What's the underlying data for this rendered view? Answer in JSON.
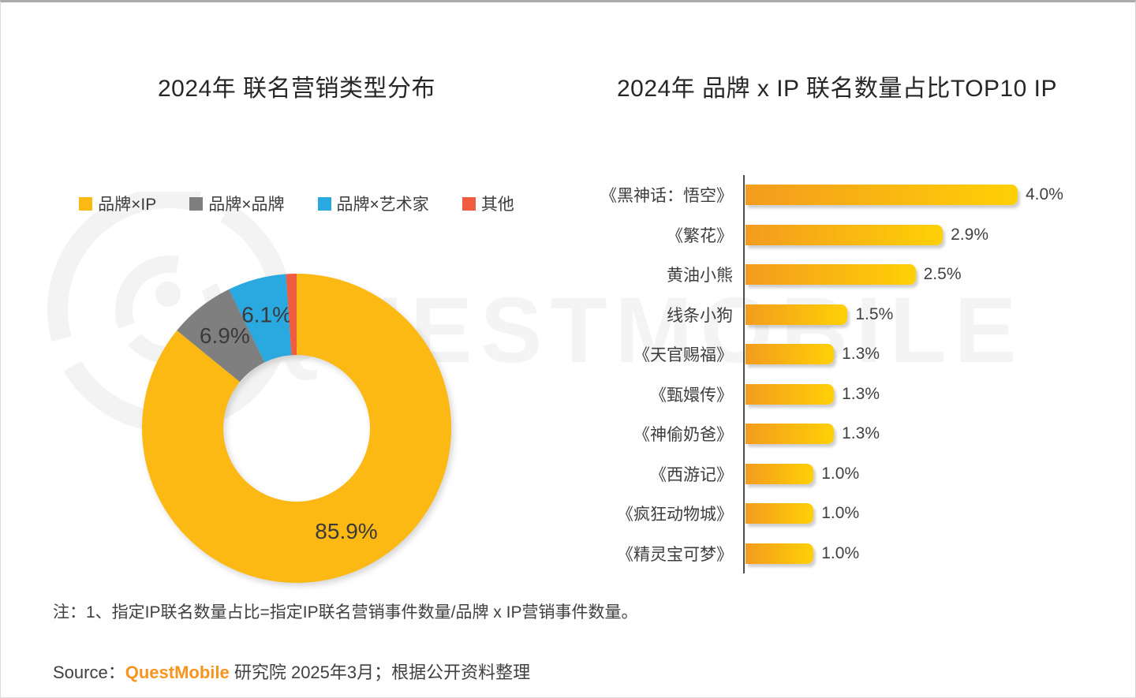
{
  "watermark": {
    "text": "QUESTMOBILE",
    "logo": "questmobile-logo",
    "color": "#f4f4f4"
  },
  "chart_data": [
    {
      "type": "pie",
      "donut": true,
      "title": "2024年 联名营销类型分布",
      "legend_position": "top",
      "start_angle_deg": -90,
      "direction": "clockwise",
      "series": [
        {
          "name": "品牌×IP",
          "value": 85.9,
          "label": "85.9%",
          "color": "#FCB813"
        },
        {
          "name": "品牌×品牌",
          "value": 6.9,
          "label": "6.9%",
          "color": "#7F7F7F"
        },
        {
          "name": "品牌×艺术家",
          "value": 6.1,
          "label": "6.1%",
          "color": "#2AA8E0"
        },
        {
          "name": "其他",
          "value": 1.1,
          "label": "",
          "color": "#F15B40"
        }
      ]
    },
    {
      "type": "bar",
      "orientation": "horizontal",
      "title": "2024年 品牌 x IP 联名数量占比TOP10 IP",
      "categories": [
        "《黑神话：悟空》",
        "《繁花》",
        "黄油小熊",
        "线条小狗",
        "《天官赐福》",
        "《甄嬛传》",
        "《神偷奶爸》",
        "《西游记》",
        "《疯狂动物城》",
        "《精灵宝可梦》"
      ],
      "values": [
        4.0,
        2.9,
        2.5,
        1.5,
        1.3,
        1.3,
        1.3,
        1.0,
        1.0,
        1.0
      ],
      "value_labels": [
        "4.0%",
        "2.9%",
        "2.5%",
        "1.5%",
        "1.3%",
        "1.3%",
        "1.3%",
        "1.0%",
        "1.0%",
        "1.0%"
      ],
      "xlim": [
        0,
        4.4
      ],
      "grid": false,
      "bar_gradient": [
        "#F39C1E",
        "#FFD006"
      ],
      "axis_color": "#4D4D4D"
    }
  ],
  "footer": {
    "note": "注：1、指定IP联名数量占比=指定IP联名营销事件数量/品牌 x IP营销事件数量。",
    "source_prefix": "Source：",
    "source_brand": "QuestMobile",
    "source_brand_color": "#F7941E",
    "source_suffix": " 研究院 2025年3月；根据公开资料整理"
  }
}
